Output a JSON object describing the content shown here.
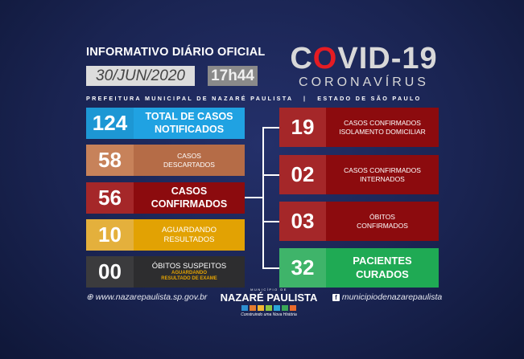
{
  "header": {
    "title": "INFORMATIVO DIÁRIO OFICIAL",
    "date": "30/JUN/2020",
    "time": "17h44",
    "covid_prefix": "C",
    "covid_o": "O",
    "covid_rest": "VID-19",
    "coronavirus": "CORONAVÍRUS",
    "subtitle": "PREFEITURA MUNICIPAL DE NAZARÉ PAULISTA   |   ESTADO DE SÃO PAULO"
  },
  "left": [
    {
      "value": "124",
      "line1": "TOTAL DE CASOS",
      "line2": "NOTIFICADOS",
      "num_color": "#1d97d4",
      "label_color": "#20a2e2"
    },
    {
      "value": "58",
      "line1": "CASOS",
      "line2": "DESCARTADOS",
      "num_color": "#c7825a",
      "label_color": "#b56c47"
    },
    {
      "value": "56",
      "line1": "CASOS",
      "line2": "CONFIRMADOS",
      "num_color": "#a52729",
      "label_color": "#8c0b0e"
    },
    {
      "value": "10",
      "line1": "AGUARDANDO",
      "line2": "RESULTADOS",
      "num_color": "#e4b03c",
      "label_color": "#e2a203"
    },
    {
      "value": "00",
      "line1": "ÓBITOS  SUSPEITOS",
      "line2": "AGUARDANDO",
      "line3": "RESULTADO DE EXAME",
      "num_color": "#3b3b3d",
      "label_color": "#2d2d2f"
    }
  ],
  "right": [
    {
      "value": "19",
      "line1": "CASOS CONFIRMADOS",
      "line2": "ISOLAMENTO DOMICILIAR",
      "num_color": "#a52729",
      "label_color": "#8c0b0e"
    },
    {
      "value": "02",
      "line1": "CASOS CONFIRMADOS",
      "line2": "INTERNADOS",
      "num_color": "#a52729",
      "label_color": "#8c0b0e"
    },
    {
      "value": "03",
      "line1": "ÓBITOS",
      "line2": "CONFIRMADOS",
      "num_color": "#a52729",
      "label_color": "#8c0b0e"
    },
    {
      "value": "32",
      "line1": "PACIENTES",
      "line2": "CURADOS",
      "num_color": "#3fb46a",
      "label_color": "#1faa54"
    }
  ],
  "footer": {
    "website": "www.nazarepaulista.sp.gov.br",
    "municipio": "MUNICÍPIO DE",
    "city": "NAZARÉ PAULISTA",
    "slogan": "Construindo uma Nova História",
    "facebook": "municipiodenazarepaulista"
  }
}
